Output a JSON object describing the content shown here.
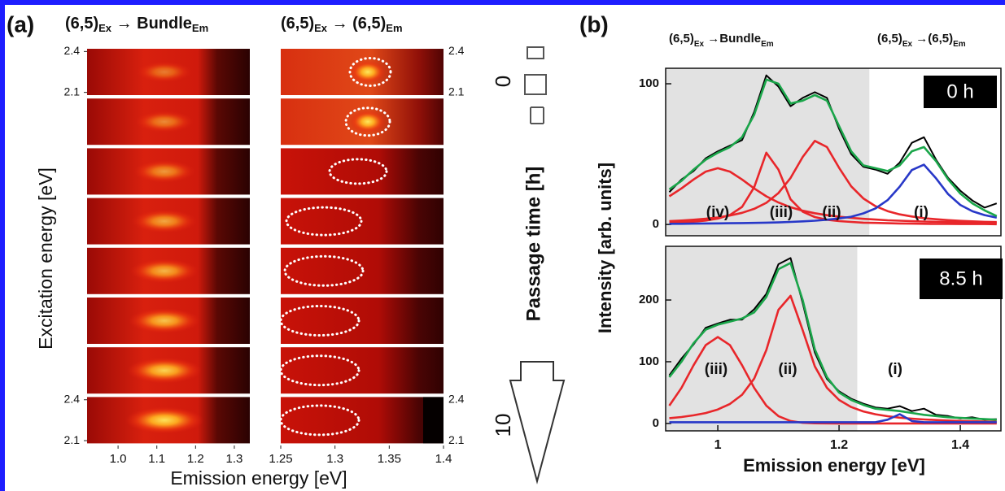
{
  "chart_data": [
    {
      "type": "heatmap",
      "panel_label": "(a)",
      "headers": [
        [
          {
            "text": "(6,5)"
          },
          {
            "text": "Ex",
            "sub": true
          },
          {
            "text": " → Bundle"
          },
          {
            "text": "Em",
            "sub": true
          }
        ],
        [
          {
            "text": "(6,5)"
          },
          {
            "text": "Ex",
            "sub": true
          },
          {
            "text": " → (6,5)"
          },
          {
            "text": "Em",
            "sub": true
          }
        ]
      ],
      "ylabel": "Excitation energy [eV]",
      "xlabel": "Emission energy [eV]",
      "ylim": [
        2.08,
        2.42
      ],
      "yticks": [
        2.4,
        2.1
      ],
      "panels": [
        {
          "xlim": [
            0.92,
            1.34
          ],
          "xticks": [
            {
              "value": 1,
              "label": "1.0"
            },
            1.1,
            1.2,
            1.3
          ]
        },
        {
          "xlim": [
            1.25,
            1.4
          ],
          "xticks": [
            1.25,
            1.3,
            1.35,
            1.4
          ]
        }
      ],
      "time_label": "Passage time [h]",
      "time_ticks": [
        0,
        10
      ]
    },
    {
      "type": "line",
      "panel_label": "(b)",
      "headers": [
        [
          {
            "text": "(6,5)"
          },
          {
            "text": "Ex",
            "sub": true
          },
          {
            "text": " →Bundle"
          },
          {
            "text": "Em",
            "sub": true
          }
        ],
        [
          {
            "text": "(6,5)"
          },
          {
            "text": "Ex",
            "sub": true
          },
          {
            "text": " →(6,5)"
          },
          {
            "text": "Em",
            "sub": true
          }
        ]
      ],
      "ylabel": "Intensity [arb. units]",
      "time_label": "0 h",
      "shaded_until": 1.25,
      "annotations": [
        "(iv)",
        "(iii)",
        "(ii)",
        "(i)"
      ],
      "xlim": [
        0.914,
        1.467
      ],
      "ylim": [
        -8,
        111
      ],
      "yticks": [
        0,
        100
      ],
      "x": [
        0.92,
        0.94,
        0.96,
        0.98,
        1.0,
        1.02,
        1.04,
        1.06,
        1.08,
        1.1,
        1.12,
        1.14,
        1.16,
        1.18,
        1.2,
        1.22,
        1.24,
        1.26,
        1.28,
        1.3,
        1.32,
        1.34,
        1.36,
        1.38,
        1.4,
        1.42,
        1.44,
        1.46
      ],
      "series": [
        {
          "color": "#e8262a",
          "values": [
            20.0,
            25.6,
            32.0,
            37.6,
            40,
            37.6,
            32.0,
            25.6,
            20.0,
            15.6,
            12.3,
            9.8,
            8.0,
            6.6,
            5.5,
            4.7,
            4.0,
            3.5,
            3.0,
            2.7,
            2.4,
            2.1,
            1.9,
            1.7,
            1.5,
            1.4,
            1.3,
            1.2
          ]
        },
        {
          "color": "#e8262a",
          "values": [
            1.2,
            1.5,
            2.0,
            2.8,
            4.2,
            6.8,
            12.5,
            26.5,
            51.0,
            39.0,
            17.9,
            9.1,
            5.3,
            3.4,
            2.4,
            1.8,
            1.3,
            1.1,
            0.9,
            0.7,
            0.6,
            0.5,
            0.4,
            0.4,
            0.3,
            0.3,
            0.3,
            0.2
          ]
        },
        {
          "color": "#e8262a",
          "values": [
            2.4,
            2.8,
            3.4,
            4.1,
            5.0,
            6.4,
            8.3,
            11.1,
            15.4,
            22.3,
            33.1,
            48.0,
            59.4,
            55.0,
            40.3,
            27.1,
            18.5,
            13.0,
            9.5,
            7.2,
            5.7,
            4.5,
            3.7,
            3.1,
            2.6,
            2.2,
            1.9,
            1.7
          ]
        },
        {
          "color": "#2838c8",
          "values": [
            0.5,
            0.5,
            0.6,
            0.7,
            0.8,
            0.9,
            1.0,
            1.1,
            1.3,
            1.5,
            1.8,
            2.2,
            2.7,
            3.4,
            4.3,
            5.5,
            7.9,
            11.4,
            17.3,
            26.9,
            38.7,
            42.5,
            32.8,
            21.5,
            13.9,
            9.4,
            6.7,
            4.9
          ]
        },
        {
          "color": "#000000",
          "values": [
            23,
            32,
            38,
            47,
            52,
            56,
            60,
            80,
            106,
            98,
            84,
            90,
            94,
            90,
            68,
            50,
            41,
            39,
            36,
            44,
            58,
            62,
            46,
            33,
            24,
            17,
            12,
            15
          ]
        },
        {
          "color": "#1aa64a",
          "values": [
            25,
            31,
            39,
            46,
            51,
            55,
            62,
            78,
            103,
            100,
            86,
            88,
            92,
            88,
            70,
            52,
            42,
            40,
            38,
            42,
            52,
            55,
            45,
            32,
            22,
            15,
            10,
            6
          ]
        }
      ]
    },
    {
      "type": "line",
      "xlabel": "Emission energy [eV]",
      "time_label": "8.5 h",
      "shaded_until": 1.23,
      "annotations": [
        "(iii)",
        "(ii)",
        "(i)"
      ],
      "xlim": [
        0.914,
        1.467
      ],
      "ylim": [
        -12,
        287
      ],
      "yticks": [
        0,
        100,
        200
      ],
      "xticks": [
        1,
        1.2,
        1.4
      ],
      "x": [
        0.92,
        0.94,
        0.96,
        0.98,
        1.0,
        1.02,
        1.04,
        1.06,
        1.08,
        1.1,
        1.12,
        1.14,
        1.16,
        1.18,
        1.2,
        1.22,
        1.24,
        1.26,
        1.28,
        1.3,
        1.32,
        1.34,
        1.36,
        1.38,
        1.4,
        1.42,
        1.44,
        1.46
      ],
      "series": [
        {
          "color": "#e8262a",
          "values": [
            28.8,
            57.5,
            94.3,
            126.8,
            140,
            126.8,
            94.3,
            57.5,
            28.8,
            11.9,
            4.0,
            1.1,
            0.3,
            0.1,
            0,
            0,
            0,
            0,
            0,
            0,
            0,
            0,
            0,
            0,
            0,
            0,
            0,
            0
          ]
        },
        {
          "color": "#e8262a",
          "values": [
            8.5,
            10.4,
            13.1,
            16.9,
            22.7,
            31.6,
            46.5,
            72.7,
            118.9,
            184.1,
            206.8,
            151.1,
            92.5,
            57.7,
            38.0,
            26.6,
            19.5,
            14.9,
            11.7,
            9.4,
            7.7,
            6.4,
            5.5,
            4.7,
            4.1,
            3.6,
            3.1,
            2.8
          ]
        },
        {
          "color": "#2838c8",
          "values": [
            2,
            2,
            2,
            2,
            2,
            2,
            2,
            2,
            2,
            2,
            2,
            2,
            2,
            2,
            2,
            2,
            2,
            2,
            6,
            15,
            4,
            2,
            2,
            2,
            2,
            2,
            2,
            2
          ]
        },
        {
          "color": "#000000",
          "values": [
            78,
            105,
            128,
            155,
            162,
            168,
            168,
            185,
            210,
            258,
            268,
            195,
            115,
            72,
            52,
            40,
            32,
            26,
            24,
            28,
            20,
            24,
            14,
            12,
            8,
            10,
            6,
            7
          ]
        },
        {
          "color": "#1aa64a",
          "values": [
            75,
            100,
            130,
            152,
            160,
            165,
            170,
            180,
            205,
            250,
            260,
            200,
            120,
            75,
            50,
            38,
            30,
            24,
            22,
            20,
            17,
            14,
            12,
            10,
            9,
            8,
            7,
            6
          ]
        }
      ]
    }
  ]
}
